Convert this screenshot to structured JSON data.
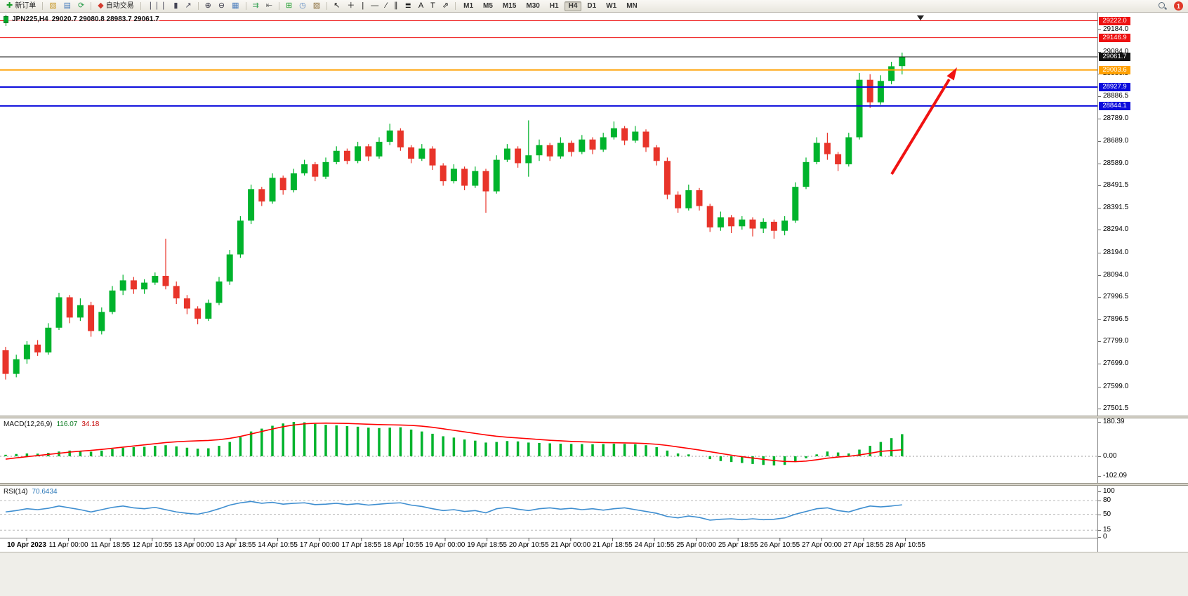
{
  "toolbar": {
    "notification_count": "1",
    "groups": [
      {
        "items": [
          {
            "name": "new-order-button",
            "icon": "new-order-icon",
            "glyph": "✚",
            "icon_color": "#1a9c2a",
            "label": "新订单"
          }
        ]
      },
      {
        "items": [
          {
            "name": "new-chart-button",
            "icon": "new-chart-icon",
            "glyph": "▧",
            "icon_color": "#c8992c"
          },
          {
            "name": "profiles-button",
            "icon": "profiles-icon",
            "glyph": "▤",
            "icon_color": "#4a7dbd"
          },
          {
            "name": "refresh-button",
            "icon": "refresh-icon",
            "glyph": "⟳",
            "icon_color": "#2e9e4f"
          }
        ]
      },
      {
        "items": [
          {
            "name": "auto-trading-button",
            "icon": "auto-trading-icon",
            "glyph": "◆",
            "icon_color": "#d23b2f",
            "label": "自动交易"
          }
        ]
      },
      {
        "items": [
          {
            "name": "bar-chart-button",
            "icon": "bar-chart-icon",
            "glyph": "❘❘❘",
            "icon_color": "#445"
          },
          {
            "name": "candlestick-chart-button",
            "icon": "candlestick-chart-icon",
            "glyph": "▮",
            "icon_color": "#445"
          },
          {
            "name": "line-chart-button",
            "icon": "line-chart-icon",
            "glyph": "↗",
            "icon_color": "#445"
          }
        ]
      },
      {
        "items": [
          {
            "name": "zoom-in-button",
            "icon": "zoom-in-icon",
            "glyph": "⊕",
            "icon_color": "#334"
          },
          {
            "name": "zoom-out-button",
            "icon": "zoom-out-icon",
            "glyph": "⊖",
            "icon_color": "#334"
          },
          {
            "name": "tile-windows-button",
            "icon": "tile-windows-icon",
            "glyph": "▦",
            "icon_color": "#4a7dbd"
          }
        ]
      },
      {
        "items": [
          {
            "name": "auto-scroll-button",
            "icon": "auto-scroll-icon",
            "glyph": "⇉",
            "icon_color": "#2e9e4f"
          },
          {
            "name": "chart-shift-button",
            "icon": "chart-shift-icon",
            "glyph": "⇤",
            "icon_color": "#666"
          }
        ]
      },
      {
        "items": [
          {
            "name": "indicators-button",
            "icon": "indicators-icon",
            "glyph": "⊞",
            "icon_color": "#1a9c2a"
          },
          {
            "name": "periods-button",
            "icon": "periods-icon",
            "glyph": "◷",
            "icon_color": "#4a7dbd"
          },
          {
            "name": "templates-button",
            "icon": "templates-icon",
            "glyph": "▨",
            "icon_color": "#8a6d3b"
          }
        ]
      },
      {
        "items": [
          {
            "name": "cursor-button",
            "icon": "cursor-icon",
            "glyph": "↖",
            "icon_color": "#111"
          },
          {
            "name": "crosshair-button",
            "icon": "crosshair-icon",
            "glyph": "＋",
            "icon_color": "#111"
          },
          {
            "name": "vertical-line-button",
            "icon": "vertical-line-icon",
            "glyph": "|",
            "icon_color": "#111"
          },
          {
            "name": "horizontal-line-button",
            "icon": "horizontal-line-icon",
            "glyph": "—",
            "icon_color": "#111"
          },
          {
            "name": "trendline-button",
            "icon": "trendline-icon",
            "glyph": "∕",
            "icon_color": "#111"
          },
          {
            "name": "channel-button",
            "icon": "channel-icon",
            "glyph": "∥",
            "icon_color": "#111"
          },
          {
            "name": "fibonacci-button",
            "icon": "fibonacci-icon",
            "glyph": "≣",
            "icon_color": "#111"
          },
          {
            "name": "text-button",
            "icon": "text-icon",
            "glyph": "A",
            "icon_color": "#111"
          },
          {
            "name": "text-label-button",
            "icon": "text-label-icon",
            "glyph": "T",
            "icon_color": "#111"
          },
          {
            "name": "arrows-button",
            "icon": "arrows-icon",
            "glyph": "⇗",
            "icon_color": "#111"
          }
        ]
      }
    ],
    "timeframes": [
      {
        "label": "M1"
      },
      {
        "label": "M5"
      },
      {
        "label": "M15"
      },
      {
        "label": "M30"
      },
      {
        "label": "H1"
      },
      {
        "label": "H4",
        "active": true
      },
      {
        "label": "D1"
      },
      {
        "label": "W1"
      },
      {
        "label": "MN"
      }
    ]
  },
  "chart": {
    "header": {
      "symbol_period": "JPN225,H4",
      "ohlc": "29020.7 29080.8 28983.7 29061.7"
    },
    "price_axis": [
      "29184.0",
      "29084.0",
      "28986.5",
      "28886.5",
      "28789.0",
      "28689.0",
      "28589.0",
      "28491.5",
      "28391.5",
      "28294.0",
      "28194.0",
      "28094.0",
      "27996.5",
      "27896.5",
      "27799.0",
      "27699.0",
      "27599.0",
      "27501.5"
    ],
    "time_axis": [
      "10 Apr 2023",
      "11 Apr 00:00",
      "11 Apr 18:55",
      "12 Apr 10:55",
      "13 Apr 00:00",
      "13 Apr 18:55",
      "14 Apr 10:55",
      "17 Apr 00:00",
      "17 Apr 18:55",
      "18 Apr 10:55",
      "19 Apr 00:00",
      "19 Apr 18:55",
      "20 Apr 10:55",
      "21 Apr 00:00",
      "21 Apr 18:55",
      "24 Apr 10:55",
      "25 Apr 00:00",
      "25 Apr 18:55",
      "26 Apr 10:55",
      "27 Apr 00:00",
      "27 Apr 18:55",
      "28 Apr 10:55"
    ],
    "lines": [
      {
        "label": "29222.0",
        "price": 29222.0,
        "color": "#ee1111",
        "width": 1,
        "role": "resistance"
      },
      {
        "label": "29146.9",
        "price": 29146.9,
        "color": "#ee1111",
        "width": 1,
        "role": "resistance"
      },
      {
        "label": "29061.7",
        "price": 29061.7,
        "color": "#111111",
        "width": 1,
        "role": "current-price"
      },
      {
        "label": "29003.6",
        "price": 29003.6,
        "color": "#ffa000",
        "width": 2,
        "role": "level"
      },
      {
        "label": "28927.9",
        "price": 28927.9,
        "color": "#0c0cdc",
        "width": 2,
        "role": "support"
      },
      {
        "label": "28844.1",
        "price": 28844.1,
        "color": "#0c0cdc",
        "width": 2,
        "role": "support"
      }
    ],
    "annotation_arrow": {
      "color": "#f01212",
      "direction": "up-right"
    }
  },
  "chart_data": {
    "type": "candlestick",
    "symbol": "JPN225",
    "timeframe": "H4",
    "colors": {
      "bull": "#00b32c",
      "bear": "#e8342a"
    },
    "candles": [
      [
        27760,
        27775,
        27630,
        27655
      ],
      [
        27655,
        27740,
        27640,
        27720
      ],
      [
        27720,
        27800,
        27700,
        27785
      ],
      [
        27785,
        27805,
        27735,
        27750
      ],
      [
        27750,
        27880,
        27740,
        27860
      ],
      [
        27860,
        28015,
        27850,
        27995
      ],
      [
        27995,
        28005,
        27880,
        27905
      ],
      [
        27905,
        27990,
        27890,
        27960
      ],
      [
        27960,
        27975,
        27820,
        27845
      ],
      [
        27845,
        27950,
        27830,
        27930
      ],
      [
        27930,
        28045,
        27920,
        28025
      ],
      [
        28025,
        28095,
        28005,
        28070
      ],
      [
        28070,
        28085,
        28010,
        28030
      ],
      [
        28030,
        28075,
        28010,
        28060
      ],
      [
        28060,
        28105,
        28050,
        28090
      ],
      [
        28090,
        28255,
        28030,
        28045
      ],
      [
        28045,
        28065,
        27965,
        27990
      ],
      [
        27990,
        28005,
        27920,
        27945
      ],
      [
        27945,
        27955,
        27875,
        27900
      ],
      [
        27900,
        27985,
        27890,
        27970
      ],
      [
        27970,
        28085,
        27960,
        28065
      ],
      [
        28065,
        28205,
        28050,
        28185
      ],
      [
        28185,
        28355,
        28170,
        28335
      ],
      [
        28335,
        28495,
        28320,
        28475
      ],
      [
        28475,
        28485,
        28400,
        28420
      ],
      [
        28420,
        28545,
        28410,
        28525
      ],
      [
        28525,
        28535,
        28450,
        28470
      ],
      [
        28470,
        28565,
        28460,
        28545
      ],
      [
        28545,
        28605,
        28535,
        28585
      ],
      [
        28585,
        28595,
        28510,
        28530
      ],
      [
        28530,
        28615,
        28520,
        28595
      ],
      [
        28595,
        28665,
        28585,
        28645
      ],
      [
        28645,
        28655,
        28585,
        28600
      ],
      [
        28600,
        28685,
        28590,
        28665
      ],
      [
        28665,
        28675,
        28600,
        28620
      ],
      [
        28620,
        28705,
        28610,
        28685
      ],
      [
        28685,
        28765,
        28670,
        28735
      ],
      [
        28735,
        28745,
        28645,
        28660
      ],
      [
        28660,
        28670,
        28590,
        28610
      ],
      [
        28610,
        28675,
        28600,
        28655
      ],
      [
        28655,
        28665,
        28560,
        28580
      ],
      [
        28580,
        28590,
        28490,
        28510
      ],
      [
        28510,
        28585,
        28500,
        28565
      ],
      [
        28565,
        28575,
        28470,
        28490
      ],
      [
        28490,
        28575,
        28480,
        28555
      ],
      [
        28555,
        28565,
        28370,
        28465
      ],
      [
        28465,
        28625,
        28455,
        28605
      ],
      [
        28605,
        28675,
        28595,
        28655
      ],
      [
        28655,
        28665,
        28570,
        28590
      ],
      [
        28590,
        28780,
        28530,
        28625
      ],
      [
        28625,
        28695,
        28600,
        28670
      ],
      [
        28670,
        28680,
        28600,
        28620
      ],
      [
        28620,
        28705,
        28610,
        28680
      ],
      [
        28680,
        28690,
        28620,
        28640
      ],
      [
        28640,
        28715,
        28630,
        28695
      ],
      [
        28695,
        28705,
        28630,
        28650
      ],
      [
        28650,
        28725,
        28640,
        28705
      ],
      [
        28705,
        28775,
        28695,
        28745
      ],
      [
        28745,
        28755,
        28670,
        28690
      ],
      [
        28690,
        28755,
        28680,
        28730
      ],
      [
        28730,
        28740,
        28640,
        28660
      ],
      [
        28660,
        28670,
        28580,
        28600
      ],
      [
        28600,
        28615,
        28430,
        28450
      ],
      [
        28450,
        28465,
        28370,
        28390
      ],
      [
        28390,
        28495,
        28380,
        28470
      ],
      [
        28470,
        28480,
        28380,
        28400
      ],
      [
        28400,
        28410,
        28285,
        28305
      ],
      [
        28305,
        28375,
        28290,
        28350
      ],
      [
        28350,
        28360,
        28280,
        28310
      ],
      [
        28310,
        28355,
        28295,
        28340
      ],
      [
        28340,
        28350,
        28265,
        28300
      ],
      [
        28300,
        28345,
        28280,
        28330
      ],
      [
        28330,
        28340,
        28255,
        28290
      ],
      [
        28290,
        28355,
        28270,
        28335
      ],
      [
        28335,
        28505,
        28325,
        28485
      ],
      [
        28485,
        28615,
        28475,
        28595
      ],
      [
        28595,
        28705,
        28585,
        28680
      ],
      [
        28680,
        28725,
        28605,
        28630
      ],
      [
        28630,
        28640,
        28555,
        28585
      ],
      [
        28585,
        28725,
        28575,
        28705
      ],
      [
        28705,
        28990,
        28695,
        28960
      ],
      [
        28960,
        28985,
        28835,
        28860
      ],
      [
        28860,
        28980,
        28850,
        28955
      ],
      [
        28955,
        29040,
        28940,
        29020
      ],
      [
        29020.7,
        29080.8,
        28983.7,
        29061.7
      ]
    ],
    "macd": {
      "label": "MACD(12,26,9)",
      "main_value": "116.07",
      "signal_value": "34.18",
      "scale": [
        "180.39",
        "0.00",
        "-102.09"
      ],
      "histogram_color": "#00b32c",
      "signal_color": "#ff0000",
      "histogram": [
        8,
        12,
        15,
        14,
        18,
        25,
        30,
        28,
        24,
        30,
        38,
        45,
        48,
        50,
        55,
        58,
        52,
        45,
        40,
        42,
        55,
        75,
        100,
        130,
        145,
        160,
        172,
        180,
        178,
        170,
        165,
        162,
        158,
        155,
        150,
        148,
        150,
        152,
        140,
        130,
        118,
        105,
        98,
        88,
        82,
        72,
        75,
        80,
        78,
        72,
        70,
        68,
        66,
        65,
        64,
        63,
        64,
        66,
        65,
        63,
        58,
        48,
        30,
        15,
        10,
        0,
        -15,
        -25,
        -30,
        -35,
        -40,
        -45,
        -48,
        -45,
        -30,
        -10,
        10,
        25,
        20,
        15,
        35,
        55,
        75,
        95,
        116
      ],
      "signal": [
        -15,
        -8,
        -2,
        4,
        10,
        16,
        22,
        27,
        31,
        36,
        42,
        48,
        54,
        60,
        66,
        72,
        76,
        79,
        81,
        83,
        87,
        94,
        104,
        117,
        130,
        143,
        155,
        164,
        170,
        173,
        174,
        173,
        172,
        170,
        168,
        166,
        165,
        164,
        162,
        158,
        152,
        144,
        136,
        128,
        120,
        112,
        105,
        100,
        96,
        92,
        88,
        84,
        81,
        78,
        76,
        74,
        72,
        71,
        70,
        69,
        67,
        63,
        57,
        49,
        41,
        33,
        24,
        15,
        6,
        -2,
        -9,
        -16,
        -22,
        -27,
        -28,
        -25,
        -18,
        -10,
        -4,
        0,
        7,
        16,
        26,
        30,
        34
      ]
    },
    "rsi": {
      "label": "RSI(14)",
      "value": "70.6434",
      "scale": [
        "100",
        "80",
        "50",
        "15",
        "0"
      ],
      "levels": [
        80,
        50,
        15
      ],
      "line_color": "#3e8ed0",
      "values": [
        55,
        58,
        62,
        60,
        63,
        68,
        64,
        60,
        55,
        60,
        65,
        68,
        64,
        62,
        65,
        60,
        55,
        52,
        50,
        55,
        62,
        70,
        75,
        78,
        74,
        76,
        72,
        74,
        75,
        71,
        72,
        74,
        71,
        73,
        70,
        72,
        74,
        75,
        70,
        67,
        62,
        58,
        60,
        56,
        58,
        53,
        62,
        65,
        61,
        58,
        62,
        64,
        61,
        63,
        60,
        62,
        59,
        62,
        64,
        60,
        56,
        52,
        45,
        42,
        46,
        43,
        37,
        39,
        40,
        38,
        40,
        38,
        39,
        42,
        50,
        56,
        62,
        64,
        58,
        55,
        62,
        68,
        66,
        68,
        70.6
      ]
    }
  }
}
